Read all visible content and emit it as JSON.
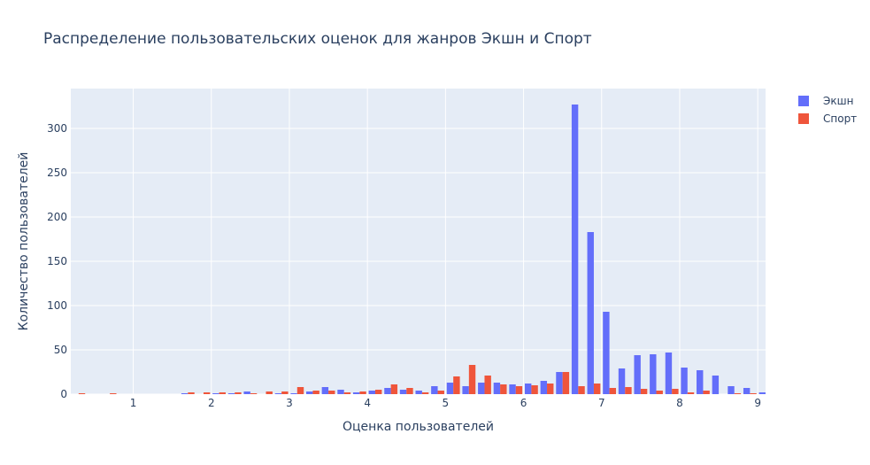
{
  "chart_data": {
    "type": "bar",
    "title": "Распределение пользовательских оценок для жанров Экшн и Спорт",
    "xlabel": "Оценка пользователей",
    "ylabel": "Количество пользователей",
    "xlim": [
      0.2,
      9.1
    ],
    "ylim": [
      0,
      345
    ],
    "bin_width": 0.2,
    "x_ticks": [
      1,
      2,
      3,
      4,
      5,
      6,
      7,
      8,
      9
    ],
    "y_ticks": [
      0,
      50,
      100,
      150,
      200,
      250,
      300
    ],
    "grid": true,
    "legend_position": "top-right",
    "x": [
      0.3,
      0.7,
      1.7,
      1.9,
      2.1,
      2.3,
      2.5,
      2.7,
      2.9,
      3.1,
      3.3,
      3.5,
      3.7,
      3.9,
      4.1,
      4.3,
      4.5,
      4.7,
      4.9,
      5.1,
      5.3,
      5.5,
      5.7,
      5.9,
      6.1,
      6.3,
      6.5,
      6.7,
      6.9,
      7.1,
      7.3,
      7.5,
      7.7,
      7.9,
      8.1,
      8.3,
      8.5,
      8.7,
      8.9,
      9.1
    ],
    "series": [
      {
        "name": "Экшн",
        "color": "#636efa",
        "values": [
          0,
          0,
          1,
          0,
          1,
          1,
          3,
          0,
          1,
          1,
          3,
          8,
          5,
          2,
          4,
          7,
          5,
          4,
          9,
          13,
          9,
          13,
          13,
          11,
          12,
          15,
          25,
          327,
          183,
          93,
          29,
          44,
          45,
          47,
          30,
          27,
          21,
          9,
          7,
          2
        ]
      },
      {
        "name": "Спорт",
        "color": "#ef553b",
        "values": [
          1,
          1,
          2,
          2,
          2,
          2,
          1,
          3,
          3,
          8,
          4,
          4,
          2,
          3,
          5,
          11,
          7,
          2,
          4,
          20,
          33,
          21,
          11,
          9,
          10,
          12,
          25,
          9,
          12,
          7,
          8,
          6,
          4,
          6,
          2,
          4,
          0,
          1,
          1,
          0
        ]
      }
    ]
  },
  "colors": {
    "plot_bg": "#e5ecf6",
    "grid": "#ffffff",
    "text": "#2a3f5f"
  }
}
